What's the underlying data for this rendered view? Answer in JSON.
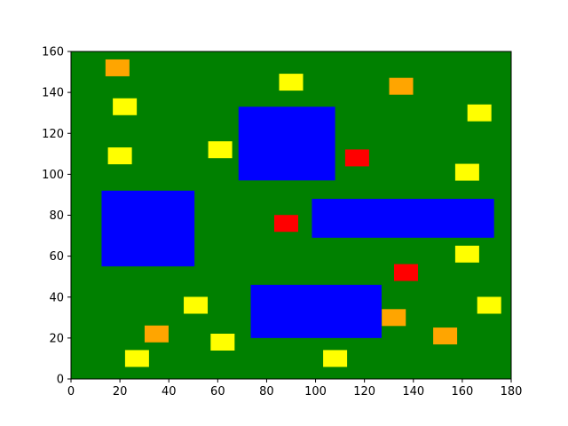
{
  "chart_data": {
    "type": "scatter",
    "title": "",
    "xlabel": "",
    "ylabel": "",
    "xlim": [
      0,
      180
    ],
    "ylim": [
      0,
      160
    ],
    "xticks": [
      0,
      20,
      40,
      60,
      80,
      100,
      120,
      140,
      160,
      180
    ],
    "yticks": [
      0,
      20,
      40,
      60,
      80,
      100,
      120,
      140,
      160
    ],
    "grid": false,
    "background_color": "#008000",
    "colors": {
      "obstacle": "#0000ff",
      "red": "#ff0000",
      "orange": "#ffa500",
      "yellow": "#ffff00"
    },
    "obstacles": [
      {
        "x0": 12.5,
        "x1": 50.5,
        "y0": 55,
        "y1": 92
      },
      {
        "x0": 68.5,
        "x1": 108,
        "y0": 97,
        "y1": 133
      },
      {
        "x0": 98.5,
        "x1": 173,
        "y0": 69,
        "y1": 88
      },
      {
        "x0": 73.5,
        "x1": 127,
        "y0": 20,
        "y1": 46
      }
    ],
    "markers": [
      {
        "color": "red",
        "x": 117,
        "y": 108
      },
      {
        "color": "red",
        "x": 88,
        "y": 76
      },
      {
        "color": "red",
        "x": 137,
        "y": 52
      },
      {
        "color": "orange",
        "x": 19,
        "y": 152
      },
      {
        "color": "orange",
        "x": 135,
        "y": 143
      },
      {
        "color": "orange",
        "x": 35,
        "y": 22
      },
      {
        "color": "orange",
        "x": 132,
        "y": 30
      },
      {
        "color": "orange",
        "x": 153,
        "y": 21
      },
      {
        "color": "yellow",
        "x": 90,
        "y": 145
      },
      {
        "color": "yellow",
        "x": 22,
        "y": 133
      },
      {
        "color": "yellow",
        "x": 167,
        "y": 130
      },
      {
        "color": "yellow",
        "x": 61,
        "y": 112
      },
      {
        "color": "yellow",
        "x": 20,
        "y": 109
      },
      {
        "color": "yellow",
        "x": 162,
        "y": 101
      },
      {
        "color": "yellow",
        "x": 162,
        "y": 61
      },
      {
        "color": "yellow",
        "x": 51,
        "y": 36
      },
      {
        "color": "yellow",
        "x": 171,
        "y": 36
      },
      {
        "color": "yellow",
        "x": 62,
        "y": 18
      },
      {
        "color": "yellow",
        "x": 27,
        "y": 10
      },
      {
        "color": "yellow",
        "x": 108,
        "y": 10
      }
    ]
  }
}
